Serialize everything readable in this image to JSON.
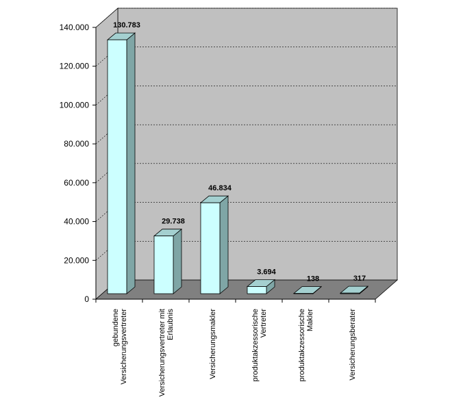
{
  "chart_data": {
    "type": "bar",
    "style": "3d",
    "categories": [
      [
        "gebundene",
        "Versicherungsvertreter"
      ],
      [
        "Versicherungsvertreter mit",
        "Erlaubnis"
      ],
      [
        "Versicherungsmakler"
      ],
      [
        "produktakzessorische",
        "Vertreter"
      ],
      [
        "produktakzessorische",
        "Makler"
      ],
      [
        "Versicherungsberater"
      ]
    ],
    "values": [
      130783,
      29738,
      46834,
      3694,
      138,
      317
    ],
    "value_labels": [
      "130.783",
      "29.738",
      "46.834",
      "3.694",
      "138",
      "317"
    ],
    "ylim": [
      0,
      140000
    ],
    "yticks": [
      0,
      20000,
      40000,
      60000,
      80000,
      100000,
      120000,
      140000
    ],
    "ytick_labels": [
      "0",
      "20.000",
      "40.000",
      "60.000",
      "80.000",
      "100.000",
      "120.000",
      "140.000"
    ],
    "gridlines": true,
    "legend": false,
    "colors": {
      "bar_front": "#ccffff",
      "bar_side": "#7fa6a6",
      "bar_top": "#a4d0d0",
      "wall": "#c0c0c0",
      "floor": "#808080",
      "grid": "#000000"
    }
  }
}
